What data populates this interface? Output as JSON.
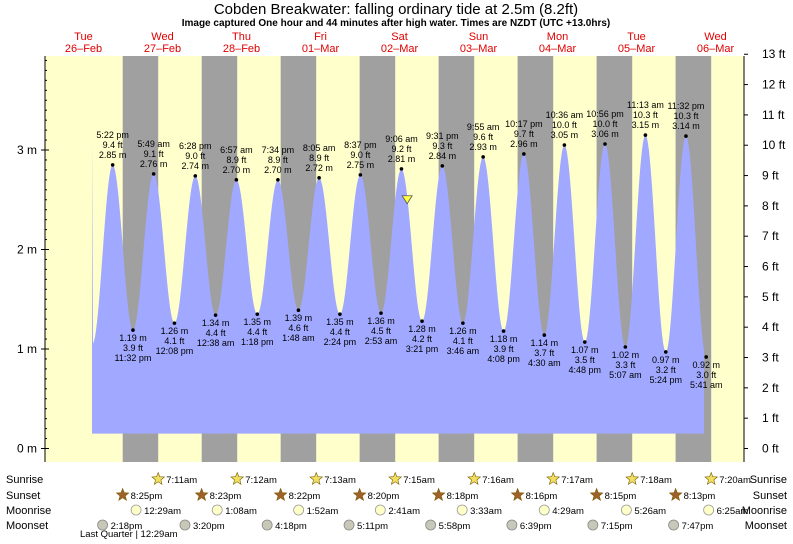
{
  "title": "Cobden Breakwater: falling  ordinary tide at 2.5m (8.2ft)",
  "subtitle": "Image captured One hour and 44 minutes after high water. Times are NZDT (UTC +13.0hrs)",
  "colors": {
    "day": "#ffffcc",
    "night": "#a0a0a0",
    "water": "#a0a8ff",
    "dayLabel": "#e00000"
  },
  "days": [
    {
      "dow": "Tue",
      "date": "26–Feb"
    },
    {
      "dow": "Wed",
      "date": "27–Feb"
    },
    {
      "dow": "Thu",
      "date": "28–Feb"
    },
    {
      "dow": "Fri",
      "date": "01–Mar"
    },
    {
      "dow": "Sat",
      "date": "02–Mar"
    },
    {
      "dow": "Sun",
      "date": "03–Mar"
    },
    {
      "dow": "Mon",
      "date": "04–Mar"
    },
    {
      "dow": "Tue",
      "date": "05–Mar"
    },
    {
      "dow": "Wed",
      "date": "06–Mar"
    }
  ],
  "chart_data": {
    "type": "area",
    "y_left_unit": "m",
    "y_right_unit": "ft",
    "ylim_m": [
      -0.1,
      4.0
    ],
    "left_ticks": [
      "0 m",
      "1 m",
      "2 m",
      "3 m"
    ],
    "right_ticks": [
      "0 ft",
      "1 ft",
      "2 ft",
      "3 ft",
      "4 ft",
      "5 ft",
      "6 ft",
      "7 ft",
      "8 ft",
      "9 ft",
      "10 ft",
      "11 ft",
      "12 ft",
      "13 ft"
    ],
    "start": "2019-02-26T00:00",
    "end": "2019-03-06T23:59",
    "highs": [
      {
        "time": "5:22 pm",
        "t": "2019-02-26T17:22",
        "m": 2.85,
        "ft": "9.4 ft",
        "m_label": "2.85 m"
      },
      {
        "time": "5:49 am",
        "t": "2019-02-27T05:49",
        "m": 2.76,
        "ft": "9.1 ft",
        "m_label": "2.76 m"
      },
      {
        "time": "6:28 pm",
        "t": "2019-02-27T18:28",
        "m": 2.74,
        "ft": "9.0 ft",
        "m_label": "2.74 m"
      },
      {
        "time": "6:57 am",
        "t": "2019-02-28T06:57",
        "m": 2.7,
        "ft": "8.9 ft",
        "m_label": "2.70 m"
      },
      {
        "time": "7:34 pm",
        "t": "2019-02-28T19:34",
        "m": 2.7,
        "ft": "8.9 ft",
        "m_label": "2.70 m"
      },
      {
        "time": "8:05 am",
        "t": "2019-03-01T08:05",
        "m": 2.72,
        "ft": "8.9 ft",
        "m_label": "2.72 m"
      },
      {
        "time": "8:37 pm",
        "t": "2019-03-01T20:37",
        "m": 2.75,
        "ft": "9.0 ft",
        "m_label": "2.75 m"
      },
      {
        "time": "9:06 am",
        "t": "2019-03-02T09:06",
        "m": 2.81,
        "ft": "9.2 ft",
        "m_label": "2.81 m"
      },
      {
        "time": "9:31 pm",
        "t": "2019-03-02T21:31",
        "m": 2.84,
        "ft": "9.3 ft",
        "m_label": "2.84 m"
      },
      {
        "time": "9:55 am",
        "t": "2019-03-03T09:55",
        "m": 2.93,
        "ft": "9.6 ft",
        "m_label": "2.93 m"
      },
      {
        "time": "10:17 pm",
        "t": "2019-03-03T22:17",
        "m": 2.96,
        "ft": "9.7 ft",
        "m_label": "2.96 m"
      },
      {
        "time": "10:36 am",
        "t": "2019-03-04T10:36",
        "m": 3.05,
        "ft": "10.0 ft",
        "m_label": "3.05 m"
      },
      {
        "time": "10:56 pm",
        "t": "2019-03-04T22:56",
        "m": 3.06,
        "ft": "10.0 ft",
        "m_label": "3.06 m"
      },
      {
        "time": "11:13 am",
        "t": "2019-03-05T11:13",
        "m": 3.15,
        "ft": "10.3 ft",
        "m_label": "3.15 m"
      },
      {
        "time": "11:32 pm",
        "t": "2019-03-05T23:32",
        "m": 3.14,
        "ft": "10.3 ft",
        "m_label": "3.14 m"
      }
    ],
    "lows": [
      {
        "time": "11:32 pm",
        "t": "2019-02-26T23:32",
        "m": 1.19,
        "ft": "3.9 ft",
        "m_label": "1.19 m"
      },
      {
        "time": "12:08 pm",
        "t": "2019-02-27T12:08",
        "m": 1.26,
        "ft": "4.1 ft",
        "m_label": "1.26 m"
      },
      {
        "time": "12:38 am",
        "t": "2019-02-28T00:38",
        "m": 1.34,
        "ft": "4.4 ft",
        "m_label": "1.34 m"
      },
      {
        "time": "1:18 pm",
        "t": "2019-02-28T13:18",
        "m": 1.35,
        "ft": "4.4 ft",
        "m_label": "1.35 m"
      },
      {
        "time": "1:48 am",
        "t": "2019-03-01T01:48",
        "m": 1.39,
        "ft": "4.6 ft",
        "m_label": "1.39 m"
      },
      {
        "time": "2:24 pm",
        "t": "2019-03-01T14:24",
        "m": 1.35,
        "ft": "4.4 ft",
        "m_label": "1.35 m"
      },
      {
        "time": "2:53 am",
        "t": "2019-03-02T02:53",
        "m": 1.36,
        "ft": "4.5 ft",
        "m_label": "1.36 m"
      },
      {
        "time": "3:21 pm",
        "t": "2019-03-02T15:21",
        "m": 1.28,
        "ft": "4.2 ft",
        "m_label": "1.28 m"
      },
      {
        "time": "3:46 am",
        "t": "2019-03-03T03:46",
        "m": 1.26,
        "ft": "4.1 ft",
        "m_label": "1.26 m"
      },
      {
        "time": "4:08 pm",
        "t": "2019-03-03T16:08",
        "m": 1.18,
        "ft": "3.9 ft",
        "m_label": "1.18 m"
      },
      {
        "time": "4:30 am",
        "t": "2019-03-04T04:30",
        "m": 1.14,
        "ft": "3.7 ft",
        "m_label": "1.14 m"
      },
      {
        "time": "4:48 pm",
        "t": "2019-03-04T16:48",
        "m": 1.07,
        "ft": "3.5 ft",
        "m_label": "1.07 m"
      },
      {
        "time": "5:07 am",
        "t": "2019-03-05T05:07",
        "m": 1.02,
        "ft": "3.3 ft",
        "m_label": "1.02 m"
      },
      {
        "time": "5:24 pm",
        "t": "2019-03-05T17:24",
        "m": 0.97,
        "ft": "3.2 ft",
        "m_label": "0.97 m"
      },
      {
        "time": "5:41 am",
        "t": "2019-03-06T05:41",
        "m": 0.92,
        "ft": "3.0 ft",
        "m_label": "0.92 m"
      }
    ],
    "current": {
      "t": "2019-03-02T10:50",
      "m": 2.5
    }
  },
  "sun": {
    "rows": [
      "Sunrise",
      "Sunset",
      "Moonrise",
      "Moonset"
    ],
    "sunrise": [
      "7:11am",
      "7:12am",
      "7:13am",
      "7:15am",
      "7:16am",
      "7:17am",
      "7:18am",
      "7:20am"
    ],
    "sunset": [
      "8:25pm",
      "8:23pm",
      "8:22pm",
      "8:20pm",
      "8:18pm",
      "8:16pm",
      "8:15pm",
      "8:13pm"
    ],
    "moonrise": [
      "12:29am",
      "1:08am",
      "1:52am",
      "2:41am",
      "3:33am",
      "4:29am",
      "5:26am",
      "6:25am"
    ],
    "moonset": [
      "2:18pm",
      "3:20pm",
      "4:18pm",
      "5:11pm",
      "5:58pm",
      "6:39pm",
      "7:15pm",
      "7:47pm"
    ],
    "moon_phase": "Last Quarter | 12:29am"
  }
}
